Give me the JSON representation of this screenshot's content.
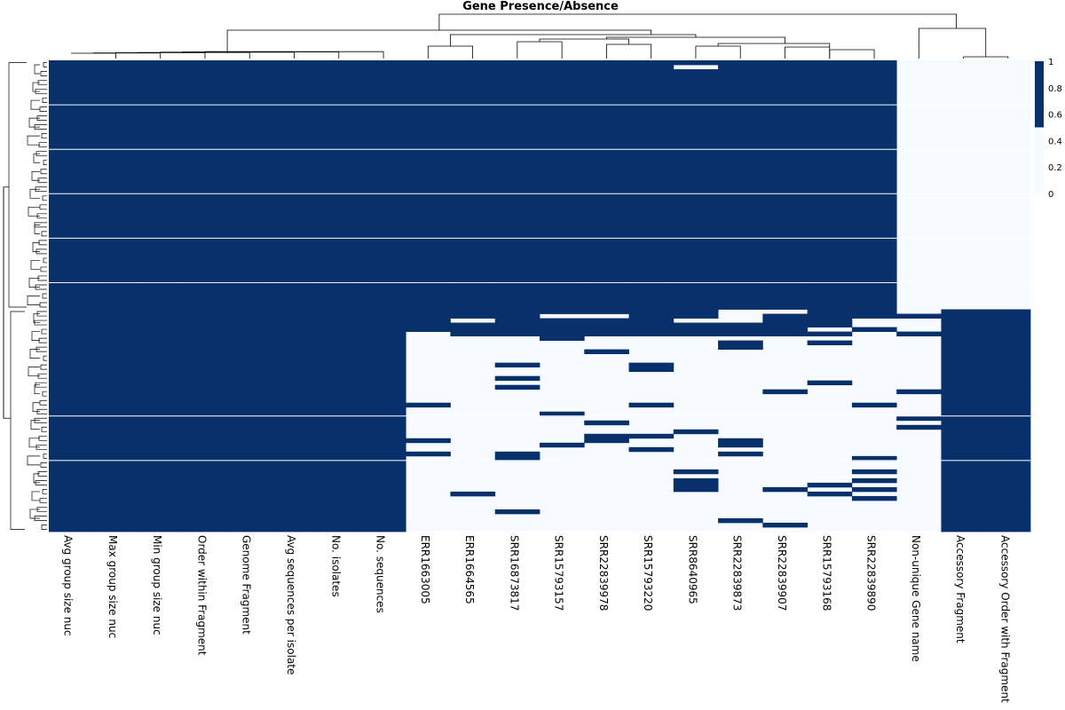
{
  "chart_data": {
    "type": "heatmap",
    "title": "Gene Presence/Absence",
    "columns": [
      "Avg group size nuc",
      "Max group size nuc",
      "Min group size nuc",
      "Order within Fragment",
      "Genome Fragment",
      "Avg sequences per isolate",
      "No. isolates",
      "No. sequences",
      "ERR1663005",
      "ERR1664565",
      "SRR16873817",
      "SRR15793157",
      "SRR22839978",
      "SRR15793220",
      "SRR8640965",
      "SRR22839873",
      "SRR22839907",
      "SRR15793168",
      "SRR22839890",
      "Non-unique Gene name",
      "Accessory Fragment",
      "Accessory Order with Fragment"
    ],
    "value_range": [
      0,
      1
    ],
    "colorbar": {
      "ticks": [
        "1",
        "0.8",
        "0.6",
        "0.4",
        "0.2",
        "0"
      ],
      "colors": {
        "high": "#08306b",
        "low": "#f7fbff"
      }
    },
    "legend_position": "top-right",
    "row_dendrogram": "left",
    "column_dendrogram": "top",
    "row_count": 106,
    "blocks": [
      {
        "rows": [
          0,
          55
        ],
        "always_present_columns": [
          0,
          1,
          2,
          3,
          4,
          5,
          6,
          7
        ],
        "isolate_presence": 1,
        "non_unique": 0,
        "accessory": 0
      },
      {
        "rows": [
          56,
          61
        ],
        "always_present_columns": [
          0,
          1,
          2,
          3,
          4,
          5,
          6,
          7
        ],
        "isolate_presence": "mostly 1",
        "non_unique": "mixed",
        "accessory": 1
      },
      {
        "rows": [
          62,
          105
        ],
        "always_present_columns": [
          0,
          1,
          2,
          3,
          4,
          5,
          6,
          7
        ],
        "isolate_presence": "mostly 0",
        "non_unique": "mostly 0",
        "accessory": 1
      }
    ]
  }
}
